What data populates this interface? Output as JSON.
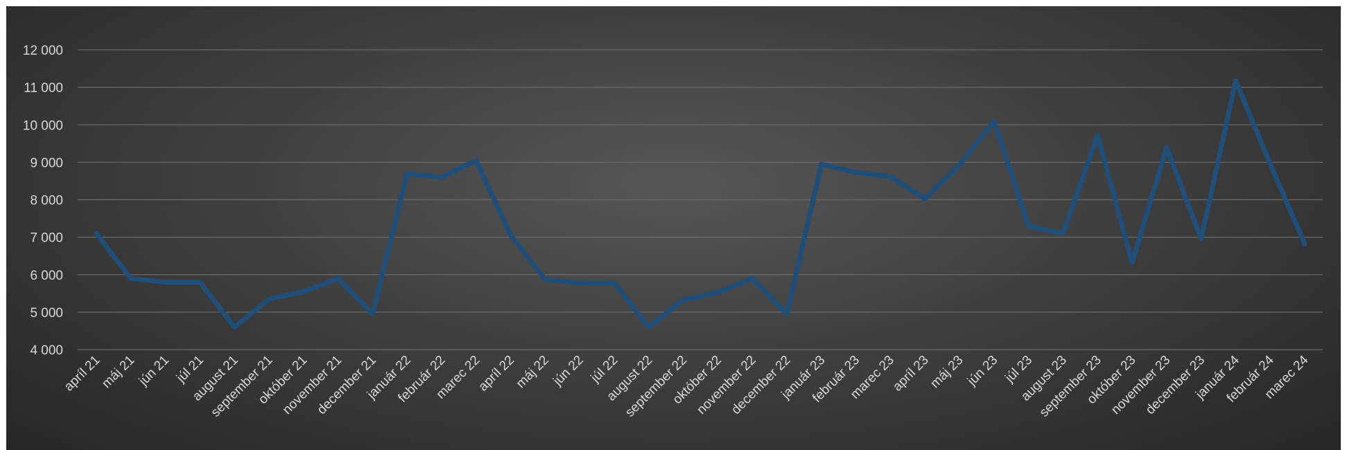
{
  "chart_data": {
    "type": "line",
    "title": "",
    "xlabel": "",
    "ylabel": "",
    "ylim": [
      4000,
      12000
    ],
    "yticks": [
      "4 000",
      "5 000",
      "6 000",
      "7 000",
      "8 000",
      "9 000",
      "10 000",
      "11 000",
      "12 000"
    ],
    "ytick_values": [
      4000,
      5000,
      6000,
      7000,
      8000,
      9000,
      10000,
      11000,
      12000
    ],
    "grid": true,
    "legend": "none",
    "colors": {
      "line": "#1f4e79",
      "background_center": "#565656",
      "background_edge": "#262626",
      "grid": "#6a6a6a",
      "text": "#d9d9d9"
    },
    "categories": [
      "apríl 21",
      "máj 21",
      "jún 21",
      "júl 21",
      "august 21",
      "september 21",
      "október 21",
      "november 21",
      "december 21",
      "január 22",
      "február 22",
      "marec 22",
      "apríl 22",
      "máj 22",
      "jún 22",
      "júl 22",
      "august 22",
      "september 22",
      "október 22",
      "november 22",
      "december 22",
      "január 23",
      "február 23",
      "marec 23",
      "apríl 23",
      "máj 23",
      "jún 23",
      "júl 23",
      "august 23",
      "september 23",
      "október 23",
      "november 23",
      "december 23",
      "január 24",
      "február 24",
      "marec 24"
    ],
    "series": [
      {
        "values": [
          7100,
          5900,
          5800,
          5800,
          4600,
          5350,
          5550,
          5900,
          4950,
          8700,
          8600,
          9050,
          7050,
          5870,
          5780,
          5780,
          4600,
          5330,
          5530,
          5900,
          4950,
          8950,
          8730,
          8620,
          8020,
          8930,
          10100,
          7300,
          7100,
          9730,
          6320,
          9400,
          6950,
          11180,
          8950,
          6820
        ]
      }
    ]
  }
}
